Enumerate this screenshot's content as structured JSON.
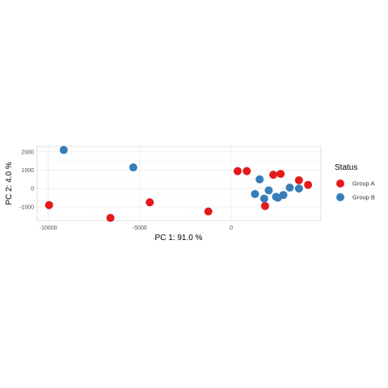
{
  "chart_data": {
    "type": "scatter",
    "title": "",
    "xlabel": "PC 1: 91.0 %",
    "ylabel": "PC 2: 4.0 %",
    "xlim": [
      -10600,
      4900
    ],
    "ylim": [
      -1750,
      2300
    ],
    "x_ticks": [
      -10000,
      -5000,
      0
    ],
    "x_tick_labels": [
      "-10000",
      "-5000",
      "0"
    ],
    "y_ticks": [
      -1000,
      0,
      1000,
      2000
    ],
    "y_tick_labels": [
      "-1000",
      "0",
      "1000",
      "2000"
    ],
    "grid": true,
    "legend": {
      "title": "Status",
      "position": "right"
    },
    "series": [
      {
        "name": "Group A",
        "color": "#E41A1C",
        "points": [
          {
            "x": -9950,
            "y": -900
          },
          {
            "x": -6600,
            "y": -1600
          },
          {
            "x": -4450,
            "y": -750
          },
          {
            "x": -1250,
            "y": -1250
          },
          {
            "x": 350,
            "y": 950
          },
          {
            "x": 850,
            "y": 950
          },
          {
            "x": 1850,
            "y": -950
          },
          {
            "x": 2300,
            "y": 750
          },
          {
            "x": 2700,
            "y": 800
          },
          {
            "x": 3700,
            "y": 450
          },
          {
            "x": 4200,
            "y": 200
          }
        ]
      },
      {
        "name": "Group B",
        "color": "#377EB8",
        "points": [
          {
            "x": -9150,
            "y": 2100
          },
          {
            "x": -5350,
            "y": 1150
          },
          {
            "x": 1300,
            "y": -300
          },
          {
            "x": 1550,
            "y": 500
          },
          {
            "x": 1800,
            "y": -550
          },
          {
            "x": 2050,
            "y": -100
          },
          {
            "x": 2450,
            "y": -450
          },
          {
            "x": 2550,
            "y": -500
          },
          {
            "x": 2850,
            "y": -350
          },
          {
            "x": 3200,
            "y": 50
          },
          {
            "x": 3700,
            "y": 0
          }
        ]
      }
    ]
  }
}
